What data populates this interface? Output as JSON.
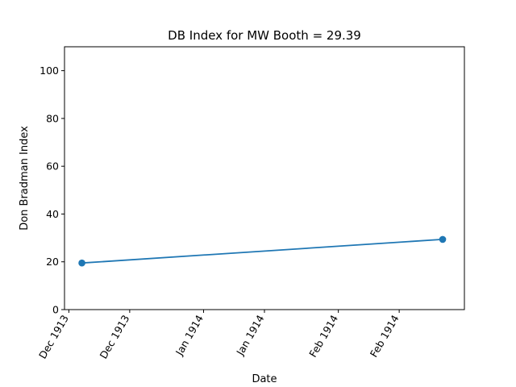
{
  "chart_data": {
    "type": "line",
    "title": "DB Index for MW Booth = 29.39",
    "xlabel": "Date",
    "ylabel": "Don Bradman Index",
    "ylim": [
      0,
      110
    ],
    "yticks": [
      0,
      20,
      40,
      60,
      80,
      100
    ],
    "xlim": [
      "1913-11-30",
      "1914-03-02"
    ],
    "xticks": [
      {
        "date": "1913-12-01",
        "label": "Dec 1913"
      },
      {
        "date": "1913-12-15",
        "label": "Dec 1913"
      },
      {
        "date": "1914-01-01",
        "label": "Jan 1914"
      },
      {
        "date": "1914-01-15",
        "label": "Jan 1914"
      },
      {
        "date": "1914-02-01",
        "label": "Feb 1914"
      },
      {
        "date": "1914-02-15",
        "label": "Feb 1914"
      }
    ],
    "series": [
      {
        "color": "#1f77b4",
        "points": [
          {
            "x": "1913-12-04",
            "y": 19.5
          },
          {
            "x": "1914-02-25",
            "y": 29.39
          }
        ]
      }
    ],
    "grid": false,
    "legend": "none"
  }
}
